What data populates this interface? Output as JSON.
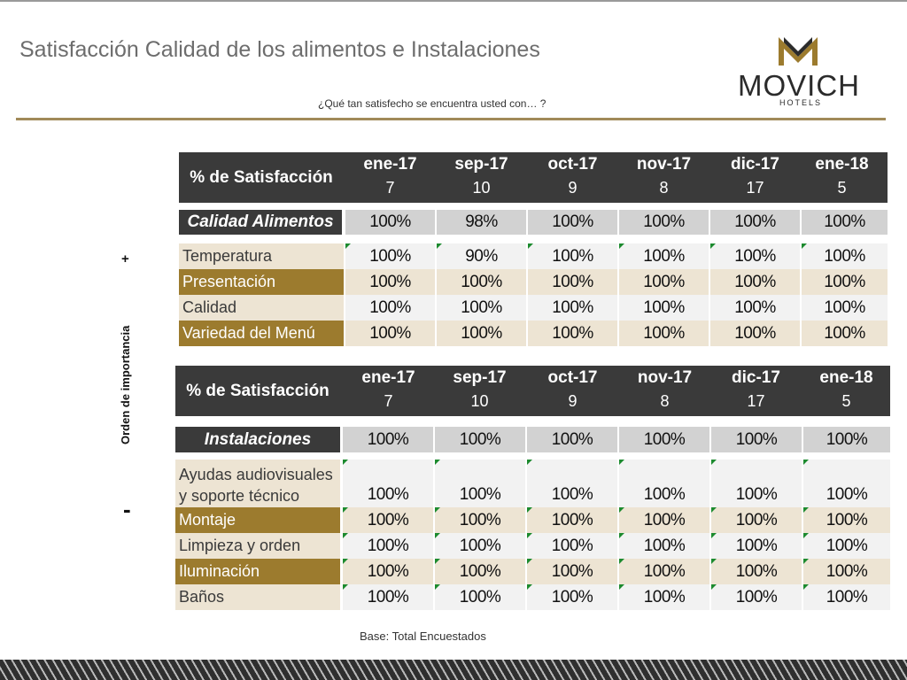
{
  "title": "Satisfacción Calidad de los alimentos e Instalaciones",
  "subtitle": "¿Qué tan satisfecho se encuentra usted con… ?",
  "logo": {
    "brand": "MOVICH",
    "sub": "HOTELS"
  },
  "sidebar": {
    "label": "Orden de importancia",
    "plus": "+",
    "minus": "-"
  },
  "colors": {
    "header_bg": "#3a3a3a",
    "accent_gold": "#9c7b2e",
    "beige": "#ede4d3",
    "summary_gray": "#d2d2d2",
    "divider": "#a18a59",
    "marker_green": "#1c8a2e"
  },
  "table1": {
    "header_label": "% de Satisfacción",
    "periods": [
      {
        "month": "ene-17",
        "n": "7"
      },
      {
        "month": "sep-17",
        "n": "10"
      },
      {
        "month": "oct-17",
        "n": "9"
      },
      {
        "month": "nov-17",
        "n": "8"
      },
      {
        "month": "dic-17",
        "n": "17"
      },
      {
        "month": "ene-18",
        "n": "5"
      }
    ],
    "summary": {
      "label": "Calidad Alimentos",
      "values": [
        "100%",
        "98%",
        "100%",
        "100%",
        "100%",
        "100%"
      ]
    },
    "rows": [
      {
        "label": "Temperatura",
        "values": [
          "100%",
          "90%",
          "100%",
          "100%",
          "100%",
          "100%"
        ]
      },
      {
        "label": "Presentación",
        "values": [
          "100%",
          "100%",
          "100%",
          "100%",
          "100%",
          "100%"
        ]
      },
      {
        "label": "Calidad",
        "values": [
          "100%",
          "100%",
          "100%",
          "100%",
          "100%",
          "100%"
        ]
      },
      {
        "label": "Variedad del Menú",
        "values": [
          "100%",
          "100%",
          "100%",
          "100%",
          "100%",
          "100%"
        ]
      }
    ]
  },
  "table2": {
    "header_label": "% de Satisfacción",
    "periods": [
      {
        "month": "ene-17",
        "n": "7"
      },
      {
        "month": "sep-17",
        "n": "10"
      },
      {
        "month": "oct-17",
        "n": "9"
      },
      {
        "month": "nov-17",
        "n": "8"
      },
      {
        "month": "dic-17",
        "n": "17"
      },
      {
        "month": "ene-18",
        "n": "5"
      }
    ],
    "summary": {
      "label": "Instalaciones",
      "values": [
        "100%",
        "100%",
        "100%",
        "100%",
        "100%",
        "100%"
      ]
    },
    "rows": [
      {
        "label_line1": "Ayudas audiovisuales",
        "label_line2": "y soporte técnico",
        "values": [
          "100%",
          "100%",
          "100%",
          "100%",
          "100%",
          "100%"
        ]
      },
      {
        "label": "Montaje",
        "values": [
          "100%",
          "100%",
          "100%",
          "100%",
          "100%",
          "100%"
        ]
      },
      {
        "label": "Limpieza y orden",
        "values": [
          "100%",
          "100%",
          "100%",
          "100%",
          "100%",
          "100%"
        ]
      },
      {
        "label": "Iluminación",
        "values": [
          "100%",
          "100%",
          "100%",
          "100%",
          "100%",
          "100%"
        ]
      },
      {
        "label": "Baños",
        "values": [
          "100%",
          "100%",
          "100%",
          "100%",
          "100%",
          "100%"
        ]
      }
    ]
  },
  "base_note": "Base: Total Encuestados"
}
